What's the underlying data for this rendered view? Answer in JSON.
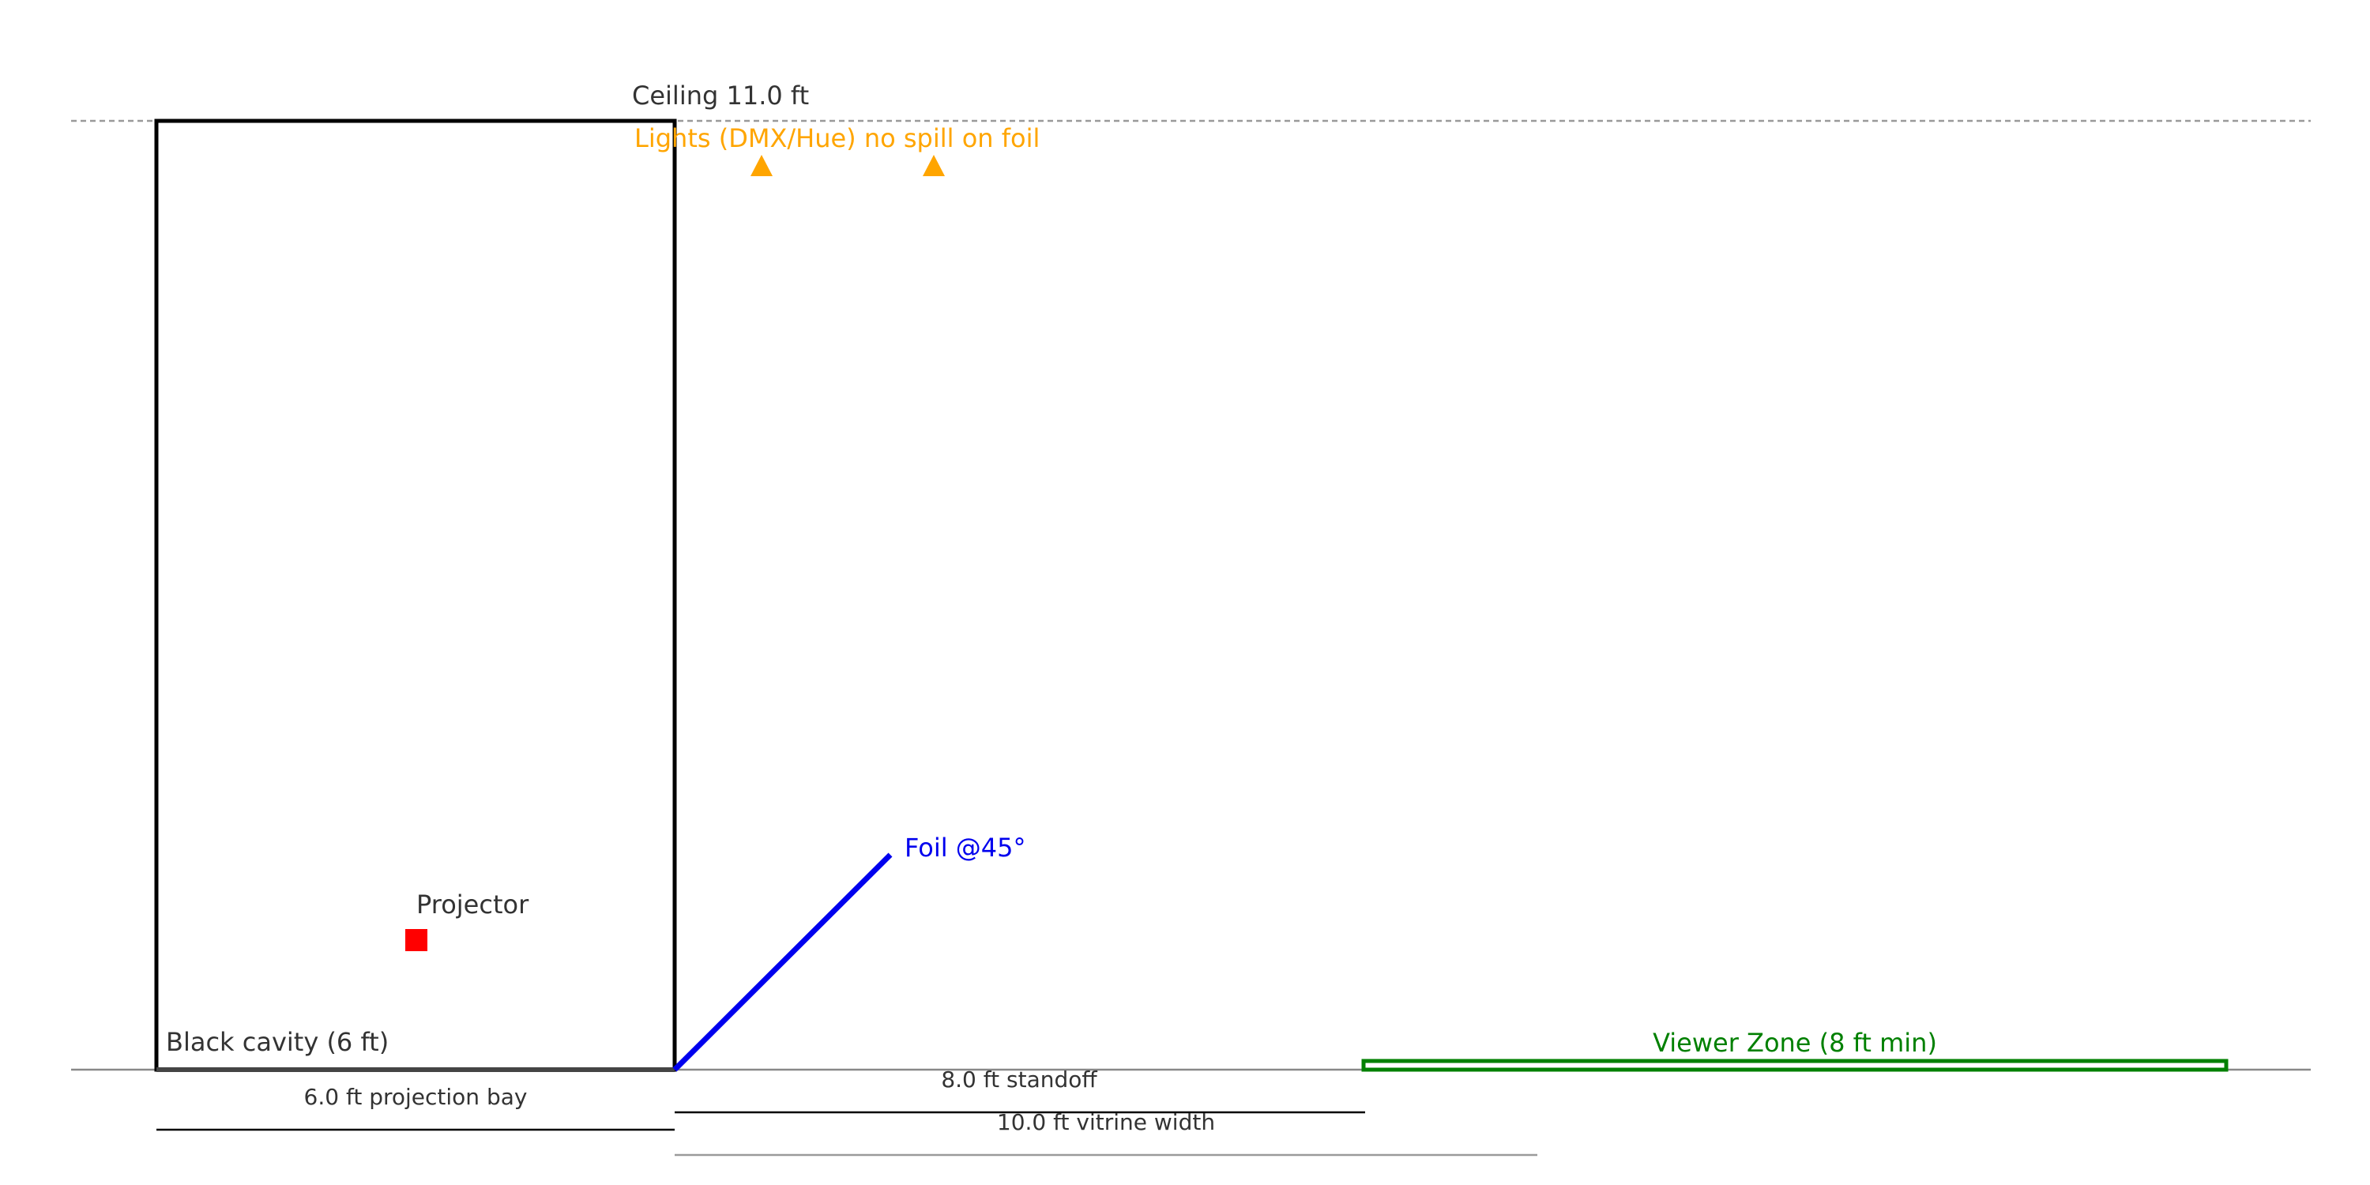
{
  "diagram": {
    "ceiling_label": "Ceiling 11.0 ft",
    "lights_label": "Lights (DMX/Hue) no spill on foil",
    "foil_label": "Foil @45°",
    "projector_label": "Projector",
    "cavity_label": "Black cavity (6 ft)",
    "viewer_zone_label": "Viewer Zone (8 ft min)",
    "dimensions": {
      "projection_bay": "6.0 ft projection bay",
      "standoff": "8.0 ft standoff",
      "vitrine_width": "10.0 ft vitrine width"
    },
    "colors": {
      "structure": "#000000",
      "floor": "#888888",
      "ceiling": "#9a9a9a",
      "lights": "#FFA500",
      "foil": "#0000EE",
      "projector": "#FF0000",
      "viewer_zone": "#008000",
      "text": "#333333"
    }
  }
}
